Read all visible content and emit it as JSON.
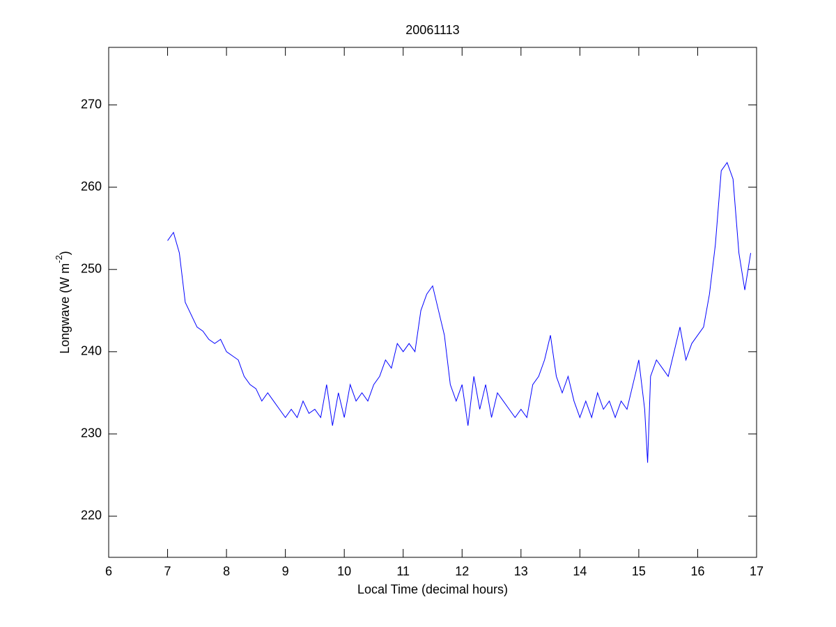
{
  "chart_data": {
    "type": "line",
    "title": "20061113",
    "xlabel": "Local Time (decimal hours)",
    "ylabel": {
      "text": "Longwave (W m",
      "superscript": "-2",
      "suffix": ")"
    },
    "x": [
      7.0,
      7.1,
      7.2,
      7.3,
      7.4,
      7.5,
      7.6,
      7.7,
      7.8,
      7.9,
      8.0,
      8.1,
      8.2,
      8.3,
      8.4,
      8.5,
      8.6,
      8.7,
      8.8,
      8.9,
      9.0,
      9.1,
      9.2,
      9.3,
      9.4,
      9.5,
      9.6,
      9.7,
      9.8,
      9.9,
      10.0,
      10.1,
      10.2,
      10.3,
      10.4,
      10.5,
      10.6,
      10.7,
      10.8,
      10.9,
      11.0,
      11.1,
      11.2,
      11.3,
      11.4,
      11.5,
      11.6,
      11.7,
      11.8,
      11.9,
      12.0,
      12.1,
      12.2,
      12.3,
      12.4,
      12.5,
      12.6,
      12.7,
      12.8,
      12.9,
      13.0,
      13.1,
      13.2,
      13.3,
      13.4,
      13.5,
      13.6,
      13.7,
      13.8,
      13.9,
      14.0,
      14.1,
      14.2,
      14.3,
      14.4,
      14.5,
      14.6,
      14.7,
      14.8,
      14.9,
      15.0,
      15.1,
      15.15,
      15.2,
      15.3,
      15.4,
      15.5,
      15.6,
      15.7,
      15.8,
      15.9,
      16.0,
      16.1,
      16.2,
      16.3,
      16.4,
      16.5,
      16.6,
      16.7,
      16.8,
      16.9
    ],
    "series": [
      {
        "color": "#0000ff",
        "values": [
          253.5,
          254.5,
          252,
          246,
          244.5,
          243,
          242.5,
          241.5,
          241,
          241.5,
          240,
          239.5,
          239,
          237,
          236,
          235.5,
          234,
          235,
          234,
          233,
          232,
          233,
          232,
          234,
          232.5,
          233,
          232,
          236,
          231,
          235,
          232,
          236,
          234,
          235,
          234,
          236,
          237,
          239,
          238,
          241,
          240,
          241,
          240,
          245,
          247,
          248,
          245,
          242,
          236,
          234,
          236,
          231,
          237,
          233,
          236,
          232,
          235,
          234,
          233,
          232,
          233,
          232,
          236,
          237,
          239,
          242,
          237,
          235,
          237,
          234,
          232,
          234,
          232,
          235,
          233,
          234,
          232,
          234,
          233,
          236,
          239,
          233,
          226.5,
          237,
          239,
          238,
          237,
          240,
          243,
          239,
          241,
          242,
          243,
          247,
          253,
          262,
          263,
          261,
          252,
          247.5,
          252
        ]
      }
    ],
    "xlim": [
      6,
      17
    ],
    "xticks": [
      6,
      7,
      8,
      9,
      10,
      11,
      12,
      13,
      14,
      15,
      16,
      17
    ],
    "ylim": [
      215,
      277
    ],
    "yticks": [
      220,
      230,
      240,
      250,
      260,
      270
    ]
  }
}
